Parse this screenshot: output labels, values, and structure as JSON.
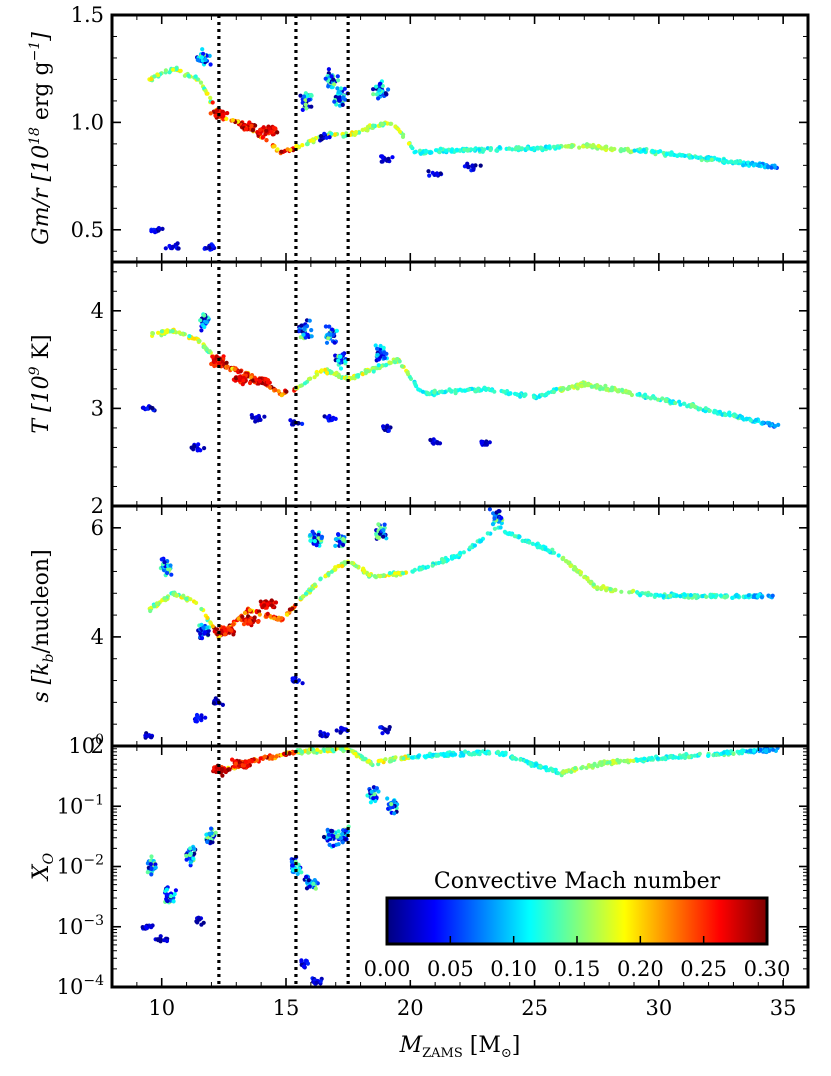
{
  "chart_data": {
    "type": "scatter",
    "xlabel": "M_ZAMS [M_⊙]",
    "xlabel_main": "M",
    "xlabel_sub": "ZAMS",
    "xlabel_unit": "[M",
    "xlabel_unit_sub": "⊙",
    "xlabel_close": "]",
    "xlim": [
      8,
      36
    ],
    "x_ticks": [
      10,
      15,
      20,
      25,
      30,
      35
    ],
    "vlines": [
      12.3,
      15.4,
      17.5
    ],
    "colorbar": {
      "title": "Convective Mach number",
      "colormap": "jet",
      "range": [
        0.0,
        0.3
      ],
      "ticks": [
        "0.00",
        "0.05",
        "0.10",
        "0.15",
        "0.20",
        "0.25",
        "0.30"
      ],
      "ramp": [
        "#00007f",
        "#0000ff",
        "#007fff",
        "#00ffff",
        "#7fff7f",
        "#ffff00",
        "#ff7f00",
        "#ff0000",
        "#7f0000"
      ]
    },
    "panels": [
      {
        "id": "gm_r",
        "ylabel": "Gm/r [10^18 erg g^-1]",
        "ylabel_main": "Gm/r [10",
        "ylabel_sup": "18",
        "ylabel_rest": " erg g",
        "ylabel_sup2": "−1",
        "ylabel_close": "]",
        "scale": "linear",
        "ylim": [
          0.35,
          1.5
        ],
        "y_ticks": [
          {
            "v": 0.5,
            "label": "0.5"
          },
          {
            "v": 1.0,
            "label": "1.0"
          },
          {
            "v": 1.5,
            "label": "1.5"
          }
        ],
        "trend": [
          [
            9.5,
            1.2
          ],
          [
            10.5,
            1.25
          ],
          [
            11.5,
            1.2
          ],
          [
            12.3,
            1.03
          ],
          [
            13.5,
            0.98
          ],
          [
            14.8,
            0.86
          ],
          [
            15.4,
            0.88
          ],
          [
            16.5,
            0.94
          ],
          [
            17.5,
            0.94
          ],
          [
            18.5,
            0.98
          ],
          [
            19.3,
            1.0
          ],
          [
            20.2,
            0.86
          ],
          [
            22,
            0.87
          ],
          [
            25,
            0.88
          ],
          [
            27,
            0.89
          ],
          [
            30,
            0.86
          ],
          [
            34.8,
            0.79
          ]
        ],
        "hot": [
          [
            12.3,
            1.04
          ],
          [
            13.5,
            0.98
          ],
          [
            14.3,
            0.96
          ]
        ],
        "clusters": [
          [
            15.8,
            1.1
          ],
          [
            16.8,
            1.2
          ],
          [
            17.2,
            1.12
          ],
          [
            11.7,
            1.3
          ],
          [
            18.8,
            1.15
          ]
        ],
        "low": [
          [
            9.8,
            0.5
          ],
          [
            10.5,
            0.42
          ],
          [
            11.9,
            0.42
          ],
          [
            21,
            0.76
          ],
          [
            22.5,
            0.79
          ],
          [
            16.5,
            0.93
          ],
          [
            19,
            0.83
          ]
        ]
      },
      {
        "id": "temperature",
        "ylabel": "T [10^9 K]",
        "ylabel_main": "T [10",
        "ylabel_sup": "9",
        "ylabel_rest": " K]",
        "scale": "linear",
        "ylim": [
          2.0,
          4.5
        ],
        "y_ticks": [
          {
            "v": 2,
            "label": "2"
          },
          {
            "v": 3,
            "label": "3"
          },
          {
            "v": 4,
            "label": "4"
          }
        ],
        "trend": [
          [
            9.5,
            3.75
          ],
          [
            10.5,
            3.8
          ],
          [
            11.5,
            3.7
          ],
          [
            12.3,
            3.45
          ],
          [
            13.5,
            3.35
          ],
          [
            14.8,
            3.15
          ],
          [
            15.4,
            3.2
          ],
          [
            16.5,
            3.4
          ],
          [
            17.5,
            3.3
          ],
          [
            18.5,
            3.4
          ],
          [
            19.5,
            3.5
          ],
          [
            20.5,
            3.15
          ],
          [
            23,
            3.2
          ],
          [
            25,
            3.12
          ],
          [
            27,
            3.25
          ],
          [
            30,
            3.1
          ],
          [
            34.8,
            2.82
          ]
        ],
        "hot": [
          [
            12.3,
            3.48
          ],
          [
            13.2,
            3.3
          ],
          [
            14,
            3.28
          ]
        ],
        "clusters": [
          [
            15.8,
            3.8
          ],
          [
            16.8,
            3.75
          ],
          [
            17.2,
            3.5
          ],
          [
            11.7,
            3.9
          ],
          [
            18.8,
            3.55
          ]
        ],
        "low": [
          [
            9.5,
            3.0
          ],
          [
            13.8,
            2.9
          ],
          [
            15.4,
            2.85
          ],
          [
            16.8,
            2.9
          ],
          [
            19,
            2.8
          ],
          [
            21,
            2.65
          ],
          [
            23,
            2.65
          ],
          [
            11.5,
            2.6
          ]
        ]
      },
      {
        "id": "entropy",
        "ylabel": "s [k_b/nucleon]",
        "ylabel_main": "s [k",
        "ylabel_sub": "b",
        "ylabel_rest": "/nucleon]",
        "scale": "linear",
        "ylim": [
          2.0,
          6.4
        ],
        "y_ticks": [
          {
            "v": 2,
            "label": "2"
          },
          {
            "v": 4,
            "label": "4"
          },
          {
            "v": 6,
            "label": "6"
          }
        ],
        "trend": [
          [
            9.5,
            4.5
          ],
          [
            10.5,
            4.8
          ],
          [
            11.5,
            4.6
          ],
          [
            12.3,
            4.0
          ],
          [
            13.5,
            4.5
          ],
          [
            14.8,
            4.3
          ],
          [
            15.4,
            4.6
          ],
          [
            16.5,
            5.1
          ],
          [
            17.5,
            5.4
          ],
          [
            18.5,
            5.1
          ],
          [
            20,
            5.2
          ],
          [
            22,
            5.5
          ],
          [
            23.5,
            6.0
          ],
          [
            26,
            5.5
          ],
          [
            27.5,
            4.9
          ],
          [
            30,
            4.75
          ],
          [
            34.8,
            4.75
          ]
        ],
        "hot": [
          [
            12.6,
            4.1
          ],
          [
            13.5,
            4.3
          ],
          [
            14.3,
            4.6
          ]
        ],
        "clusters": [
          [
            16.2,
            5.8
          ],
          [
            17.2,
            5.8
          ],
          [
            18.8,
            5.9
          ],
          [
            23.5,
            6.2
          ],
          [
            11.7,
            4.1
          ],
          [
            10.2,
            5.3
          ]
        ],
        "low": [
          [
            9.5,
            2.2
          ],
          [
            11.5,
            2.5
          ],
          [
            12.2,
            2.8
          ],
          [
            16.5,
            2.2
          ],
          [
            17.3,
            2.3
          ],
          [
            19,
            2.3
          ],
          [
            15.4,
            3.2
          ]
        ]
      },
      {
        "id": "oxygen",
        "ylabel": "X_O",
        "ylabel_main": "X",
        "ylabel_sub": "O",
        "scale": "log",
        "ylim_log10": [
          -4,
          0
        ],
        "y_ticks": [
          {
            "v": 0,
            "base": "10",
            "exp": "0"
          },
          {
            "v": -1,
            "base": "10",
            "exp": "−1"
          },
          {
            "v": -2,
            "base": "10",
            "exp": "−2"
          },
          {
            "v": -3,
            "base": "10",
            "exp": "−3"
          },
          {
            "v": -4,
            "base": "10",
            "exp": "−4"
          }
        ],
        "trend": [
          [
            12.3,
            -0.45
          ],
          [
            13.5,
            -0.25
          ],
          [
            14.8,
            -0.15
          ],
          [
            15.4,
            -0.1
          ],
          [
            17.5,
            -0.05
          ],
          [
            18.5,
            -0.3
          ],
          [
            19.5,
            -0.2
          ],
          [
            21,
            -0.15
          ],
          [
            23.5,
            -0.1
          ],
          [
            26,
            -0.45
          ],
          [
            27.5,
            -0.3
          ],
          [
            30,
            -0.2
          ],
          [
            34.8,
            -0.05
          ]
        ],
        "hot": [
          [
            12.3,
            -0.4
          ],
          [
            13.2,
            -0.3
          ]
        ],
        "clusters": [
          [
            9.6,
            -2.0
          ],
          [
            10.3,
            -2.5
          ],
          [
            11.2,
            -1.8
          ],
          [
            12.0,
            -1.5
          ],
          [
            15.4,
            -2.0
          ],
          [
            16.0,
            -2.3
          ],
          [
            16.8,
            -1.5
          ],
          [
            17.3,
            -1.5
          ],
          [
            18.5,
            -0.8
          ],
          [
            19.3,
            -1.0
          ]
        ],
        "low": [
          [
            9.5,
            -3.0
          ],
          [
            10,
            -3.2
          ],
          [
            11.5,
            -2.9
          ],
          [
            15.8,
            -3.6
          ],
          [
            16.2,
            -3.9
          ]
        ]
      }
    ]
  }
}
